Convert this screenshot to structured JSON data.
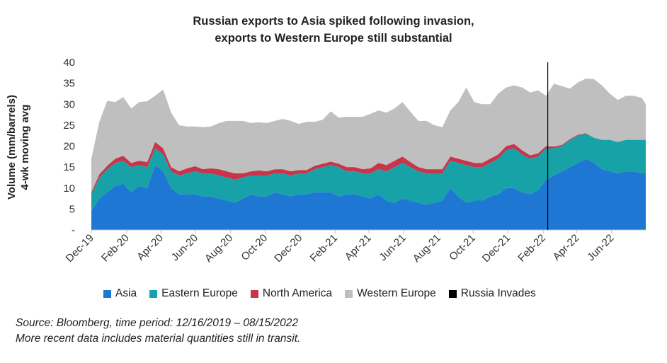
{
  "title_line1": "Russian exports to Asia spiked following invasion,",
  "title_line2": "exports to Western Europe still substantial",
  "ylabel_line1": "Volume (mm/barrels)",
  "ylabel_line2": "4-wk moving avg",
  "source_line1": "Source: Bloomberg, time period: 12/16/2019 – 08/15/2022",
  "source_line2": "More recent data includes material quantities still in transit.",
  "legend": [
    {
      "label": "Asia",
      "color": "#1f77d4"
    },
    {
      "label": "Eastern Europe",
      "color": "#17a2a8"
    },
    {
      "label": "North America",
      "color": "#c8354a"
    },
    {
      "label": "Western Europe",
      "color": "#bfbfbf"
    },
    {
      "label": "Russia Invades",
      "color": "#000000"
    }
  ],
  "chart_data": {
    "type": "area",
    "stacked": true,
    "title": "Russian exports to Asia spiked following invasion, exports to Western Europe still substantial",
    "ylabel": "Volume (mm/barrels) 4-wk moving avg",
    "ylim": [
      0,
      40
    ],
    "yticks": [
      "-",
      "5",
      "10",
      "15",
      "20",
      "25",
      "30",
      "35",
      "40"
    ],
    "x_start": "2019-12-16",
    "x_end": "2022-08-15",
    "xtick_dates": [
      "2019-12-16",
      "2020-02-16",
      "2020-04-16",
      "2020-06-16",
      "2020-08-16",
      "2020-10-16",
      "2020-12-16",
      "2021-02-16",
      "2021-04-16",
      "2021-06-16",
      "2021-08-16",
      "2021-10-16",
      "2021-12-16",
      "2022-02-16",
      "2022-04-16",
      "2022-06-16"
    ],
    "xtick_labels": [
      "Dec-19",
      "Feb-20",
      "Apr-20",
      "Jun-20",
      "Aug-20",
      "Oct-20",
      "Dec-20",
      "Feb-21",
      "Apr-21",
      "Jun-21",
      "Aug-21",
      "Oct-21",
      "Dec-21",
      "Feb-22",
      "Apr-22",
      "Jun-22"
    ],
    "event": {
      "date": "2022-02-24",
      "label": "Russia Invades"
    },
    "x": [
      "2019-12-16",
      "2019-12-30",
      "2020-01-13",
      "2020-01-27",
      "2020-02-10",
      "2020-02-24",
      "2020-03-09",
      "2020-03-23",
      "2020-04-06",
      "2020-04-20",
      "2020-05-04",
      "2020-05-18",
      "2020-06-01",
      "2020-06-15",
      "2020-06-29",
      "2020-07-13",
      "2020-07-27",
      "2020-08-10",
      "2020-08-24",
      "2020-09-07",
      "2020-09-21",
      "2020-10-05",
      "2020-10-19",
      "2020-11-02",
      "2020-11-16",
      "2020-11-30",
      "2020-12-14",
      "2020-12-28",
      "2021-01-11",
      "2021-01-25",
      "2021-02-08",
      "2021-02-22",
      "2021-03-08",
      "2021-03-22",
      "2021-04-05",
      "2021-04-19",
      "2021-05-03",
      "2021-05-17",
      "2021-05-31",
      "2021-06-14",
      "2021-06-28",
      "2021-07-12",
      "2021-07-26",
      "2021-08-09",
      "2021-08-23",
      "2021-09-06",
      "2021-09-20",
      "2021-10-04",
      "2021-10-18",
      "2021-11-01",
      "2021-11-15",
      "2021-11-29",
      "2021-12-13",
      "2021-12-27",
      "2022-01-10",
      "2022-01-24",
      "2022-02-07",
      "2022-02-21",
      "2022-03-07",
      "2022-03-21",
      "2022-04-04",
      "2022-04-18",
      "2022-05-02",
      "2022-05-16",
      "2022-05-30",
      "2022-06-13",
      "2022-06-27",
      "2022-07-11",
      "2022-07-25",
      "2022-08-08",
      "2022-08-15"
    ],
    "series": [
      {
        "name": "Asia",
        "color": "#1f77d4",
        "values": [
          4.5,
          7.5,
          9,
          10.5,
          11,
          9,
          10.5,
          10,
          15.5,
          14,
          10,
          8.5,
          8.5,
          8.5,
          8,
          8,
          7.5,
          7,
          6.5,
          7.5,
          8.5,
          8,
          8,
          9,
          8.5,
          8,
          8.5,
          8.5,
          9,
          9,
          9,
          8,
          8.5,
          8.5,
          8,
          7.5,
          8.5,
          7,
          6.5,
          7.5,
          7,
          6.5,
          6,
          6.5,
          7,
          10,
          8,
          6.5,
          7,
          7,
          8,
          8.5,
          10,
          10,
          9,
          8.5,
          9.5,
          12,
          13,
          14,
          15,
          16,
          17,
          16,
          14.5,
          14,
          13.5,
          14,
          14,
          13.5,
          13.5
        ]
      },
      {
        "name": "Eastern Europe",
        "color": "#17a2a8",
        "values": [
          4,
          5,
          5.5,
          5.5,
          5.5,
          6,
          5,
          5,
          4,
          4,
          4,
          4.5,
          5,
          5.5,
          5.5,
          5.5,
          5.5,
          5.5,
          5.5,
          5,
          4.5,
          5,
          5,
          4.5,
          5,
          5,
          5,
          5,
          5.5,
          6,
          6.5,
          7,
          5.5,
          5.5,
          5.5,
          6,
          6,
          7,
          8.5,
          8.5,
          8,
          7.5,
          7.5,
          7,
          6.5,
          6.5,
          8,
          9,
          8,
          8,
          8,
          8.5,
          9,
          9.5,
          9,
          8.5,
          8,
          7.5,
          6.5,
          6,
          6.5,
          6.5,
          6,
          6,
          7,
          7.5,
          7.5,
          7.5,
          7.5,
          8,
          8
        ]
      },
      {
        "name": "North America",
        "color": "#c8354a",
        "values": [
          0.5,
          0.8,
          0.8,
          1,
          1.2,
          1,
          1,
          1.2,
          1.5,
          1.5,
          1,
          1,
          1.2,
          1.2,
          1,
          1.2,
          1.5,
          1.5,
          1.5,
          1,
          1,
          1.2,
          1,
          1,
          1,
          1,
          0.8,
          0.8,
          0.8,
          0.8,
          0.8,
          0.8,
          1,
          1,
          1,
          1.2,
          1.5,
          1.5,
          1.5,
          1.5,
          1.2,
          1,
          1,
          1,
          1,
          1,
          1,
          1,
          1,
          1,
          1,
          1,
          1,
          1,
          1,
          0.8,
          0.8,
          0.5,
          0.4,
          0.3,
          0.2,
          0.2,
          0.1,
          0,
          0,
          0,
          0,
          0,
          0,
          0,
          0
        ]
      },
      {
        "name": "Western Europe",
        "color": "#bfbfbf",
        "values": [
          8,
          12.5,
          15.5,
          13.5,
          14,
          13,
          14,
          14.5,
          11,
          14,
          13,
          11,
          10,
          9.5,
          10,
          10,
          11,
          12,
          12.5,
          12.5,
          11.5,
          11.5,
          11.5,
          11.5,
          12,
          12,
          11,
          11.5,
          10.5,
          10.5,
          12,
          11,
          12,
          12,
          12.5,
          13,
          12.5,
          12.5,
          12.5,
          13,
          12,
          11,
          11.5,
          10.5,
          10,
          11,
          13.5,
          17.5,
          14.5,
          14,
          13,
          14.5,
          14,
          14,
          15,
          15,
          15,
          12,
          15,
          14,
          12,
          12.5,
          13,
          14,
          13,
          11,
          10,
          10.5,
          10.5,
          10,
          8.5
        ]
      }
    ]
  }
}
